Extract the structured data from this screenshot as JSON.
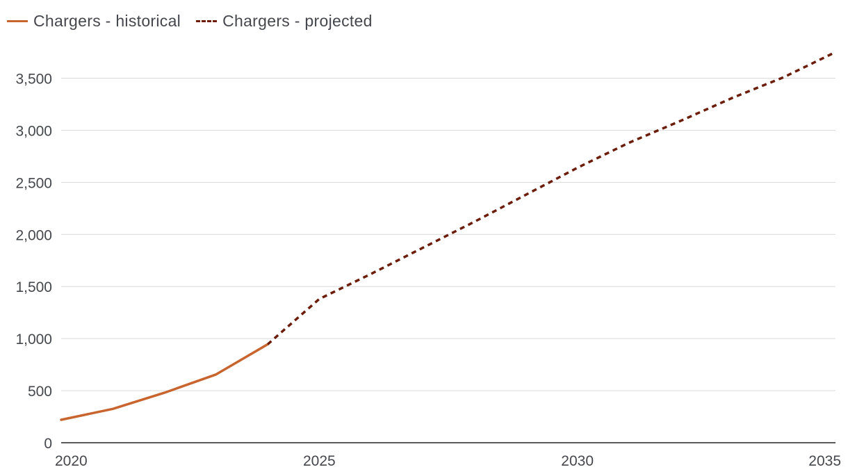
{
  "chart_data": {
    "type": "line",
    "title": "",
    "xlabel": "",
    "ylabel": "",
    "xlim": [
      2020,
      2035
    ],
    "ylim": [
      0,
      3750
    ],
    "x_ticks": [
      2020,
      2025,
      2030,
      2035
    ],
    "y_ticks": [
      0,
      500,
      1000,
      1500,
      2000,
      2500,
      3000,
      3500
    ],
    "y_tick_labels": [
      "0",
      "500",
      "1,000",
      "1,500",
      "2,000",
      "2,500",
      "3,000",
      "3,500"
    ],
    "grid": "horizontal",
    "legend_position": "top-left",
    "series": [
      {
        "name": "Chargers - historical",
        "style": "solid",
        "color": "#c8652f",
        "x": [
          2020,
          2021,
          2022,
          2023,
          2024
        ],
        "values": [
          220,
          325,
          480,
          655,
          945
        ]
      },
      {
        "name": "Chargers - projected",
        "style": "dashed",
        "color": "#6b1d0a",
        "x": [
          2024,
          2025,
          2026,
          2027,
          2028,
          2029,
          2030,
          2031,
          2032,
          2033,
          2034,
          2035
        ],
        "values": [
          945,
          1380,
          1620,
          1870,
          2120,
          2380,
          2640,
          2880,
          3090,
          3310,
          3510,
          3750
        ]
      }
    ]
  },
  "colors": {
    "grid": "#d9d9d9",
    "axis": "#222222",
    "text": "#44474c"
  }
}
